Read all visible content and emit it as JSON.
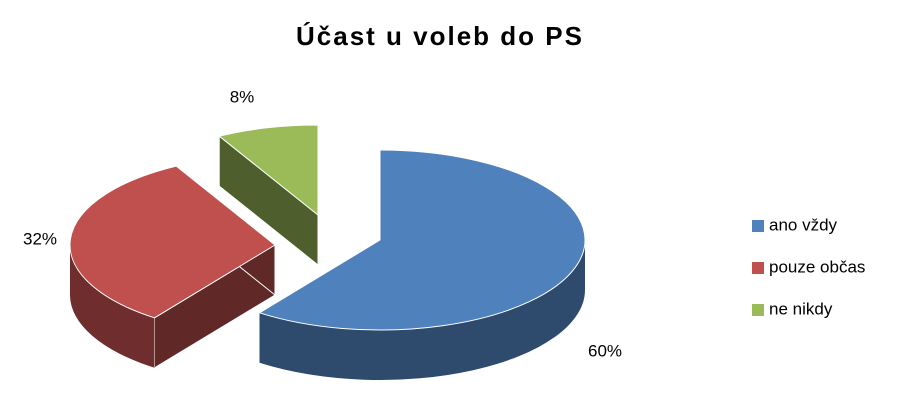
{
  "chart_data": {
    "type": "pie3d",
    "title": "Účast u voleb do PS",
    "categories": [
      "ano vždy",
      "pouze občas",
      "ne nikdy"
    ],
    "values": [
      60,
      32,
      8
    ],
    "value_labels": [
      "60%",
      "32%",
      "8%"
    ],
    "colors": [
      "#4f81bd",
      "#c0504d",
      "#9bbb59"
    ],
    "legend": "right"
  }
}
